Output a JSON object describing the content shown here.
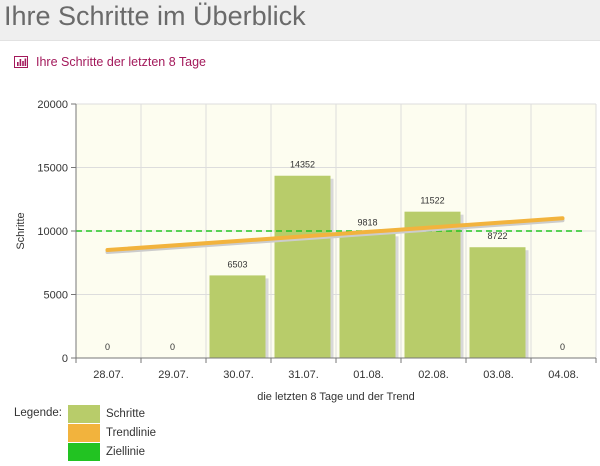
{
  "page": {
    "title": "Ihre Schritte im Überblick",
    "section_title": "Ihre Schritte der letzten 8 Tage",
    "section_icon": "bar-chart-icon"
  },
  "chart_data": {
    "type": "bar",
    "title": "",
    "xlabel": "die letzten 8 Tage und der Trend",
    "ylabel": "Schritte",
    "categories": [
      "28.07.",
      "29.07.",
      "30.07.",
      "31.07.",
      "01.08.",
      "02.08.",
      "03.08.",
      "04.08."
    ],
    "series": [
      {
        "name": "Schritte",
        "type": "bar",
        "values": [
          0,
          0,
          6503,
          14352,
          9818,
          11522,
          8722,
          0
        ],
        "color": "#b8cc6a"
      },
      {
        "name": "Trendlinie",
        "type": "line",
        "start": 8500,
        "end": 11000,
        "color": "#f2b33d"
      },
      {
        "name": "Ziellinie",
        "type": "line",
        "style": "dashed",
        "value": 10000,
        "color": "#22c322"
      }
    ],
    "data_labels": [
      "0",
      "0",
      "6503",
      "14352",
      "9818",
      "11522",
      "8722",
      "0"
    ],
    "ylim": [
      0,
      20000
    ],
    "yticks": [
      0,
      5000,
      10000,
      15000,
      20000
    ],
    "grid": true,
    "legend": {
      "caption": "Legende:",
      "position": "bottom-left",
      "entries": [
        {
          "label": "Schritte",
          "color": "#b8cc6a"
        },
        {
          "label": "Trendlinie",
          "color": "#f2b33d"
        },
        {
          "label": "Ziellinie",
          "color": "#22c322"
        }
      ]
    }
  }
}
